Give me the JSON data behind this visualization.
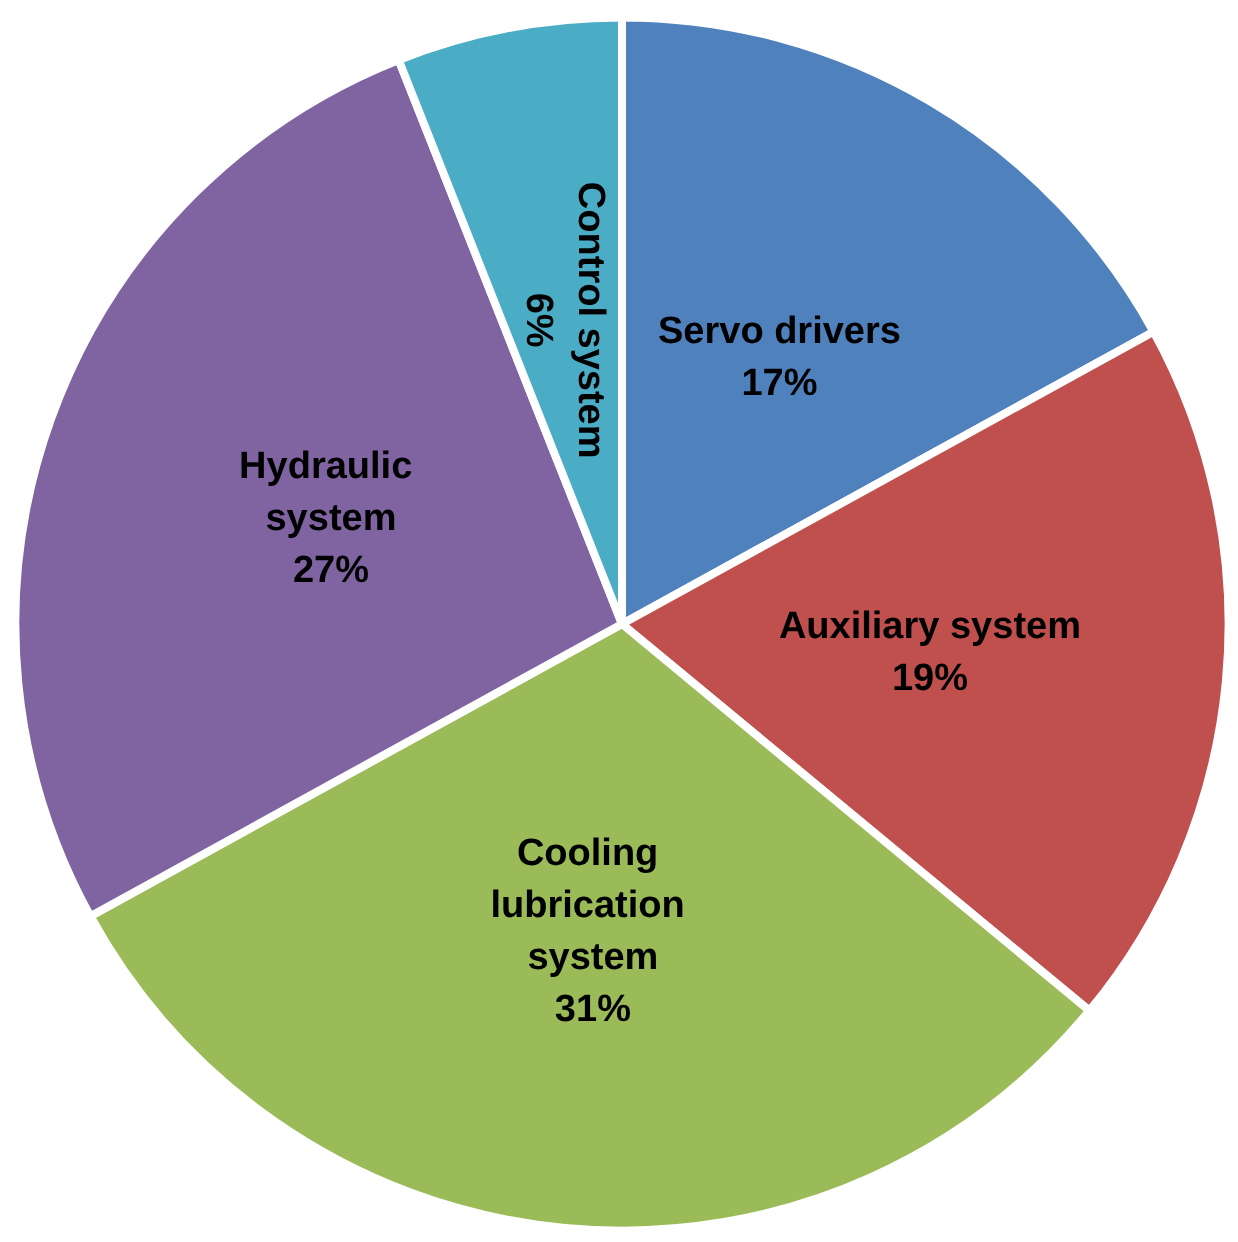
{
  "chart_data": {
    "type": "pie",
    "categories": [
      "Servo drivers",
      "Auxiliary system",
      "Cooling lubrication system",
      "Hydraulic system",
      "Control system"
    ],
    "values": [
      17,
      19,
      31,
      27,
      6
    ],
    "colors": [
      "#4f81bd",
      "#c0504d",
      "#9bbb59",
      "#8064a2",
      "#4bacc6"
    ],
    "legend": false,
    "value_labels": [
      "17%",
      "19%",
      "31%",
      "27%",
      "6%"
    ]
  }
}
